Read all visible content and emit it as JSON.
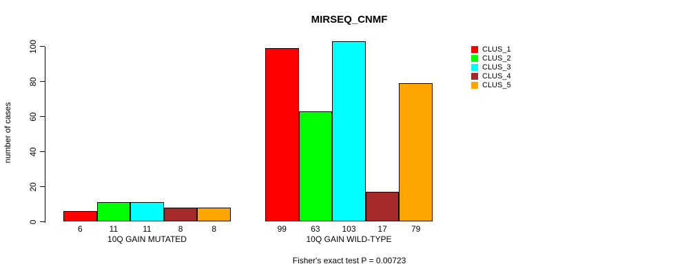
{
  "chart_data": {
    "type": "bar",
    "title": "MIRSEQ_CNMF",
    "ylabel": "number of cases",
    "xlabel": "",
    "caption": "Fisher's exact test P = 0.00723",
    "categories": [
      "10Q GAIN MUTATED",
      "10Q GAIN WILD-TYPE"
    ],
    "series": [
      {
        "name": "CLUS_1",
        "color": "#FF0000",
        "values": [
          6,
          99
        ]
      },
      {
        "name": "CLUS_2",
        "color": "#00FF00",
        "values": [
          11,
          63
        ]
      },
      {
        "name": "CLUS_3",
        "color": "#00FFFF",
        "values": [
          11,
          103
        ]
      },
      {
        "name": "CLUS_4",
        "color": "#A52A2A",
        "values": [
          8,
          17
        ]
      },
      {
        "name": "CLUS_5",
        "color": "#FFA500",
        "values": [
          8,
          79
        ]
      }
    ],
    "yticks": [
      0,
      20,
      40,
      60,
      80,
      100
    ],
    "ylim": [
      0,
      100
    ],
    "bar_value_labels": true,
    "legend_position": "right",
    "grid": false,
    "bar_border_color": "#000000",
    "background": "#FFFFFF"
  }
}
